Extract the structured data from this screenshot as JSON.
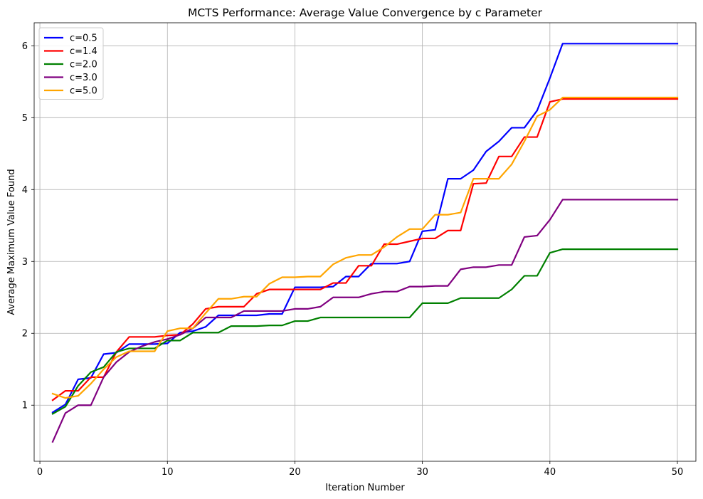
{
  "chart_data": {
    "type": "line",
    "title": "MCTS Performance: Average Value Convergence by c Parameter",
    "xlabel": "Iteration Number",
    "ylabel": "Average Maximum Value Found",
    "xlim": [
      -0.45,
      51.45
    ],
    "ylim": [
      0.22,
      6.32
    ],
    "xticks": [
      0,
      10,
      20,
      30,
      40,
      50
    ],
    "yticks": [
      1,
      2,
      3,
      4,
      5,
      6
    ],
    "grid": true,
    "legend_position": "top-left",
    "x": [
      1,
      2,
      3,
      4,
      5,
      6,
      7,
      8,
      9,
      10,
      11,
      12,
      13,
      14,
      15,
      16,
      17,
      18,
      19,
      20,
      21,
      22,
      23,
      24,
      25,
      26,
      27,
      28,
      29,
      30,
      31,
      32,
      33,
      34,
      35,
      36,
      37,
      38,
      39,
      40,
      41,
      42,
      43,
      44,
      45,
      46,
      47,
      48,
      49,
      50
    ],
    "series": [
      {
        "name": "c=0.5",
        "color": "#0000ff",
        "values": [
          0.9,
          1.01,
          1.36,
          1.38,
          1.71,
          1.73,
          1.85,
          1.85,
          1.85,
          1.86,
          2.01,
          2.03,
          2.09,
          2.25,
          2.25,
          2.25,
          2.25,
          2.27,
          2.27,
          2.64,
          2.64,
          2.64,
          2.65,
          2.79,
          2.79,
          2.97,
          2.97,
          2.97,
          3.0,
          3.42,
          3.44,
          4.15,
          4.15,
          4.27,
          4.53,
          4.67,
          4.86,
          4.86,
          5.1,
          5.55,
          6.03,
          6.03,
          6.03,
          6.03,
          6.03,
          6.03,
          6.03,
          6.03,
          6.03,
          6.03
        ]
      },
      {
        "name": "c=1.4",
        "color": "#ff0000",
        "values": [
          1.07,
          1.2,
          1.2,
          1.39,
          1.39,
          1.74,
          1.95,
          1.95,
          1.95,
          1.97,
          1.98,
          2.13,
          2.34,
          2.37,
          2.37,
          2.37,
          2.55,
          2.61,
          2.61,
          2.61,
          2.61,
          2.61,
          2.7,
          2.7,
          2.94,
          2.94,
          3.24,
          3.24,
          3.28,
          3.32,
          3.32,
          3.43,
          3.43,
          4.08,
          4.09,
          4.46,
          4.46,
          4.73,
          4.73,
          5.22,
          5.26,
          5.26,
          5.26,
          5.26,
          5.26,
          5.26,
          5.26,
          5.26,
          5.26,
          5.26
        ]
      },
      {
        "name": "c=2.0",
        "color": "#008000",
        "values": [
          0.88,
          0.98,
          1.27,
          1.46,
          1.53,
          1.74,
          1.79,
          1.79,
          1.79,
          1.9,
          1.9,
          2.01,
          2.01,
          2.01,
          2.1,
          2.1,
          2.1,
          2.11,
          2.11,
          2.17,
          2.17,
          2.22,
          2.22,
          2.22,
          2.22,
          2.22,
          2.22,
          2.22,
          2.22,
          2.42,
          2.42,
          2.42,
          2.49,
          2.49,
          2.49,
          2.49,
          2.61,
          2.8,
          2.8,
          3.12,
          3.17,
          3.17,
          3.17,
          3.17,
          3.17,
          3.17,
          3.17,
          3.17,
          3.17,
          3.17
        ]
      },
      {
        "name": "c=3.0",
        "color": "#800080",
        "values": [
          0.49,
          0.89,
          1.0,
          1.0,
          1.39,
          1.6,
          1.74,
          1.82,
          1.88,
          1.92,
          1.98,
          2.07,
          2.22,
          2.22,
          2.22,
          2.31,
          2.31,
          2.31,
          2.31,
          2.34,
          2.34,
          2.37,
          2.5,
          2.5,
          2.5,
          2.55,
          2.58,
          2.58,
          2.65,
          2.65,
          2.66,
          2.66,
          2.89,
          2.92,
          2.92,
          2.95,
          2.95,
          3.34,
          3.36,
          3.58,
          3.86,
          3.86,
          3.86,
          3.86,
          3.86,
          3.86,
          3.86,
          3.86,
          3.86,
          3.86
        ]
      },
      {
        "name": "c=5.0",
        "color": "#ffa500",
        "values": [
          1.16,
          1.1,
          1.13,
          1.3,
          1.5,
          1.67,
          1.75,
          1.75,
          1.75,
          2.03,
          2.07,
          2.07,
          2.28,
          2.48,
          2.48,
          2.51,
          2.51,
          2.69,
          2.78,
          2.78,
          2.79,
          2.79,
          2.96,
          3.05,
          3.09,
          3.09,
          3.2,
          3.34,
          3.45,
          3.45,
          3.65,
          3.65,
          3.68,
          4.15,
          4.15,
          4.15,
          4.35,
          4.67,
          5.02,
          5.11,
          5.28,
          5.28,
          5.28,
          5.28,
          5.28,
          5.28,
          5.28,
          5.28,
          5.28,
          5.28
        ]
      }
    ]
  }
}
